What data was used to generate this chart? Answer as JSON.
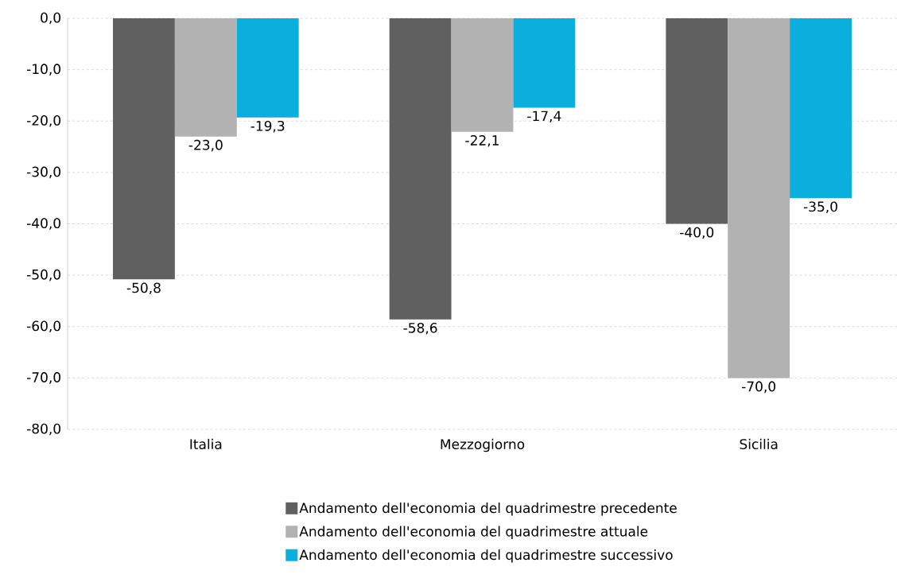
{
  "chart_data": {
    "type": "bar",
    "categories": [
      "Italia",
      "Mezzogiorno",
      "Sicilia"
    ],
    "series": [
      {
        "name": "Andamento dell'economia del quadrimestre precedente",
        "color": "#606060",
        "values": [
          -50.8,
          -58.6,
          -40.0
        ],
        "value_labels": [
          "-50,8",
          "-58,6",
          "-40,0"
        ]
      },
      {
        "name": "Andamento dell'economia del quadrimestre attuale",
        "color": "#b2b2b2",
        "values": [
          -23.0,
          -22.1,
          -70.0
        ],
        "value_labels": [
          "-23,0",
          "-22,1",
          "-70,0"
        ]
      },
      {
        "name": "Andamento dell'economia del quadrimestre successivo",
        "color": "#0aafdd",
        "values": [
          -19.3,
          -17.4,
          -35.0
        ],
        "value_labels": [
          "-19,3",
          "-17,4",
          "-35,0"
        ]
      }
    ],
    "ylim": [
      -80,
      0
    ],
    "yticks": [
      {
        "value": -80,
        "label": "-80,0"
      },
      {
        "value": -70,
        "label": "-70,0"
      },
      {
        "value": -60,
        "label": "-60,0"
      },
      {
        "value": -50,
        "label": "-50,0"
      },
      {
        "value": -40,
        "label": "-40,0"
      },
      {
        "value": -30,
        "label": "-30,0"
      },
      {
        "value": -20,
        "label": "-20,0"
      },
      {
        "value": -10,
        "label": "-10,0"
      },
      {
        "value": 0,
        "label": "0,0"
      }
    ],
    "grid": "y",
    "legend": "bottom"
  }
}
